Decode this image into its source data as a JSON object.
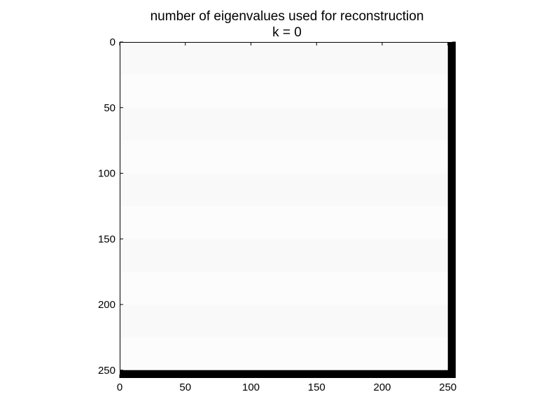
{
  "chart_data": {
    "type": "heatmap",
    "title": "number of eigenvalues used for reconstruction",
    "subtitle": "k = 0",
    "xlabel": "",
    "ylabel": "",
    "x_ticks": [
      0,
      50,
      100,
      150,
      200,
      250
    ],
    "y_ticks": [
      0,
      50,
      100,
      150,
      200,
      250
    ],
    "xlim": [
      0,
      256
    ],
    "ylim": [
      256,
      0
    ],
    "y_inverted": true,
    "colormap": "gray",
    "grid": false,
    "image": {
      "rows": 256,
      "cols": 256,
      "background_value": 0.99,
      "band_period": 25,
      "band_values": [
        0.975,
        0.99
      ],
      "dark_right_cols": [
        250,
        256
      ],
      "dark_bottom_rows": [
        250,
        256
      ],
      "dark_value": 0.0
    }
  },
  "colors": {
    "axes_frame": "#000000",
    "dark_edge": "#000000"
  }
}
